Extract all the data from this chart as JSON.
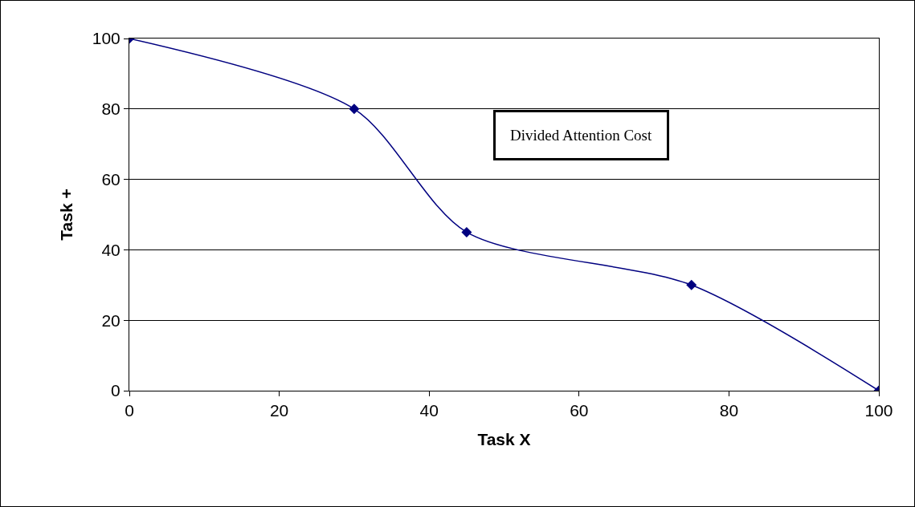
{
  "chart_data": {
    "type": "line",
    "xlabel": "Task X",
    "ylabel": "Task +",
    "x": [
      0,
      30,
      45,
      75,
      100
    ],
    "series": [
      {
        "color": "#000080",
        "values": [
          100,
          80,
          45,
          30,
          0
        ]
      }
    ],
    "xlim": [
      0,
      100
    ],
    "xticks": [
      0,
      20,
      40,
      60,
      80,
      100
    ],
    "ylim": [
      0,
      100
    ],
    "yticks": [
      0,
      20,
      40,
      60,
      80,
      100
    ],
    "grid": "y",
    "marker": "diamond",
    "line_style": "solid",
    "annotations": [
      "Divided Attention Cost"
    ]
  }
}
